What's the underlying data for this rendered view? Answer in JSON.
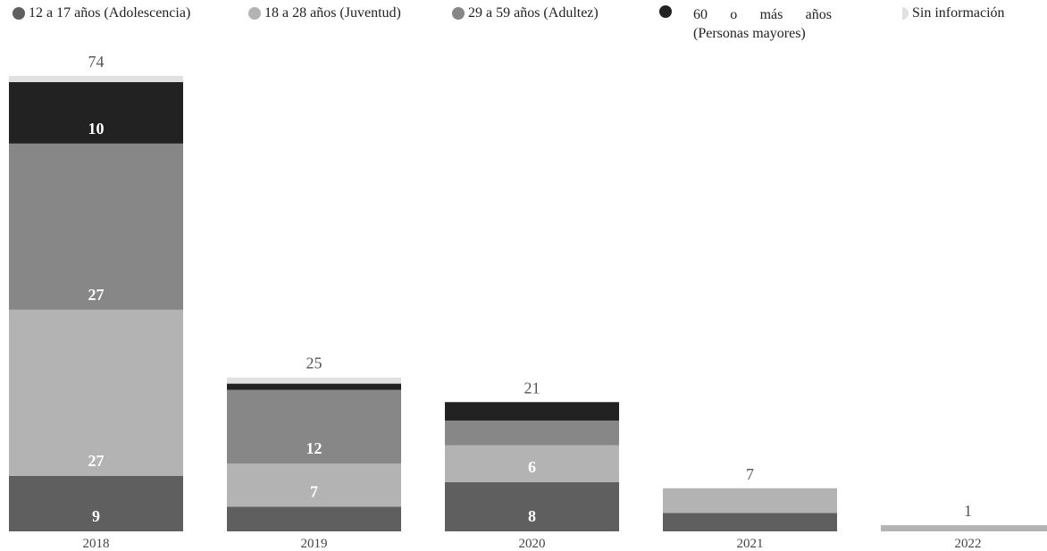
{
  "legend": [
    {
      "label": "12 a 17 años (Adolescencia)",
      "color": "#5f5f5f",
      "marker": "circle"
    },
    {
      "label": "18 a 28 años (Juventud)",
      "color": "#b3b3b3",
      "marker": "circle"
    },
    {
      "label": "29 a 59 años (Adultez)",
      "color": "#878787",
      "marker": "circle"
    },
    {
      "label": "60 o más años (Personas mayores)",
      "color": "#222222",
      "marker": "circle"
    },
    {
      "label": "Sin información",
      "color": "#e0e0e0",
      "marker": "half-circle"
    }
  ],
  "chart_data": {
    "type": "bar",
    "stacked": true,
    "categories": [
      "2018",
      "2019",
      "2020",
      "2021",
      "2022"
    ],
    "series": [
      {
        "name": "12 a 17 años (Adolescencia)",
        "color": "#5f5f5f",
        "values": [
          9,
          4,
          8,
          3,
          0
        ]
      },
      {
        "name": "18 a 28 años (Juventud)",
        "color": "#b3b3b3",
        "values": [
          27,
          7,
          6,
          4,
          1
        ]
      },
      {
        "name": "29 a 59 años (Adultez)",
        "color": "#878787",
        "values": [
          27,
          12,
          4,
          0,
          0
        ]
      },
      {
        "name": "60 o más años (Personas mayores)",
        "color": "#222222",
        "values": [
          10,
          1,
          3,
          0,
          0
        ]
      },
      {
        "name": "Sin información",
        "color": "#e0e0e0",
        "values": [
          1,
          1,
          0,
          0,
          0
        ]
      }
    ],
    "totals": [
      74,
      25,
      21,
      7,
      1
    ],
    "data_labels": [
      {
        "category": "2018",
        "series": "12 a 17 años (Adolescencia)",
        "text": "9"
      },
      {
        "category": "2018",
        "series": "18 a 28 años (Juventud)",
        "text": "27"
      },
      {
        "category": "2018",
        "series": "29 a 59 años (Adultez)",
        "text": "27"
      },
      {
        "category": "2018",
        "series": "60 o más años (Personas mayores)",
        "text": "10"
      },
      {
        "category": "2019",
        "series": "18 a 28 años (Juventud)",
        "text": "7"
      },
      {
        "category": "2019",
        "series": "29 a 59 años (Adultez)",
        "text": "12"
      },
      {
        "category": "2020",
        "series": "12 a 17 años (Adolescencia)",
        "text": "8"
      },
      {
        "category": "2020",
        "series": "18 a 28 años (Juventud)",
        "text": "6"
      }
    ],
    "ylim": [
      0,
      74
    ],
    "grid": false,
    "legend_position": "top"
  }
}
